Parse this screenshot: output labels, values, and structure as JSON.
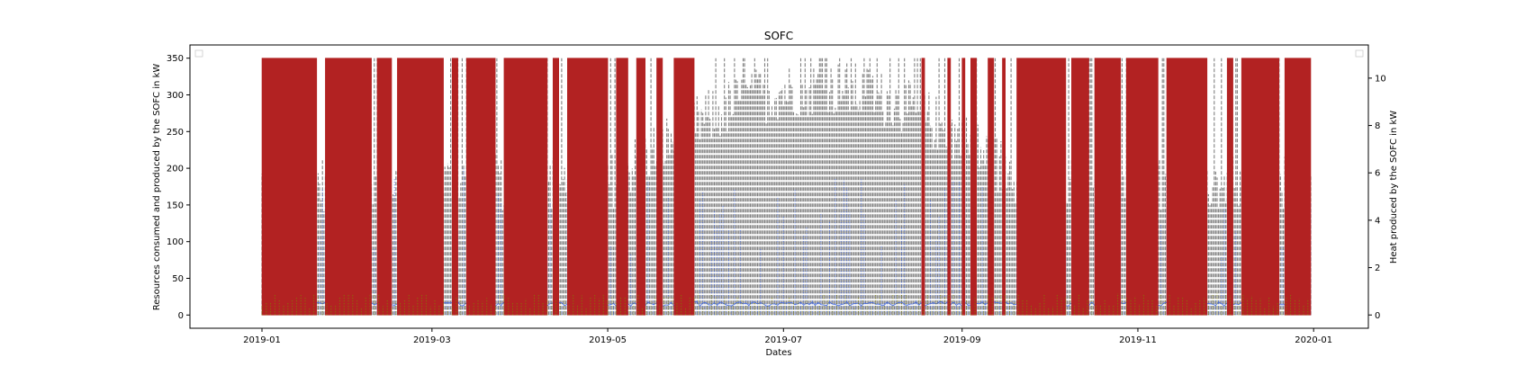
{
  "chart_data": {
    "type": "line",
    "title": "SOFC",
    "xlabel": "Dates",
    "ylabel": "Resources consumed and produced by the SOFC in kW",
    "y2label": "Heat produced by the SOFC in kW",
    "x_range": [
      "2018-12-07",
      "2020-01-20"
    ],
    "ylim": [
      -18,
      368
    ],
    "y2lim": [
      -0.56,
      11.4
    ],
    "x_ticks": [
      "2019-01",
      "2019-03",
      "2019-05",
      "2019-07",
      "2019-09",
      "2019-11",
      "2020-01"
    ],
    "y_ticks": [
      0,
      50,
      100,
      150,
      200,
      250,
      300,
      350
    ],
    "y2_ticks": [
      0,
      2,
      4,
      6,
      8,
      10
    ],
    "grid": false,
    "legend_placement": [
      "upper-left",
      "upper-right"
    ],
    "series": [
      {
        "color": "#b22222",
        "style": "dotted",
        "axis": "left",
        "min": 0,
        "max": 350,
        "active_periods": [
          [
            "2019-01-01",
            "2019-01-20"
          ],
          [
            "2019-01-23",
            "2019-02-08"
          ],
          [
            "2019-02-10",
            "2019-02-15"
          ],
          [
            "2019-02-17",
            "2019-03-05"
          ],
          [
            "2019-03-08",
            "2019-03-10"
          ],
          [
            "2019-03-13",
            "2019-03-23"
          ],
          [
            "2019-03-26",
            "2019-04-10"
          ],
          [
            "2019-04-12",
            "2019-04-14"
          ],
          [
            "2019-04-17",
            "2019-05-01"
          ],
          [
            "2019-05-04",
            "2019-05-08"
          ],
          [
            "2019-05-11",
            "2019-05-14"
          ],
          [
            "2019-05-18",
            "2019-05-20"
          ],
          [
            "2019-05-24",
            "2019-05-31"
          ],
          [
            "2019-08-18",
            "2019-08-19"
          ],
          [
            "2019-08-27",
            "2019-08-28"
          ],
          [
            "2019-09-01",
            "2019-09-02"
          ],
          [
            "2019-09-04",
            "2019-09-06"
          ],
          [
            "2019-09-10",
            "2019-09-12"
          ],
          [
            "2019-09-15",
            "2019-09-16"
          ],
          [
            "2019-09-20",
            "2019-10-07"
          ],
          [
            "2019-10-09",
            "2019-10-15"
          ],
          [
            "2019-10-17",
            "2019-10-26"
          ],
          [
            "2019-10-28",
            "2019-11-08"
          ],
          [
            "2019-11-11",
            "2019-11-25"
          ],
          [
            "2019-12-02",
            "2019-12-04"
          ],
          [
            "2019-12-07",
            "2019-12-20"
          ],
          [
            "2019-12-22",
            "2019-12-31"
          ]
        ]
      },
      {
        "color": "#808080",
        "style": "dashed",
        "axis": "left",
        "min": 0,
        "max": 350,
        "typical_summer_peak": 270
      },
      {
        "color": "#4169e1",
        "style": "dotted",
        "axis": "left",
        "min": 0,
        "max": 200,
        "typical_level": 12
      },
      {
        "color": "#808000",
        "style": "dotted",
        "axis": "left",
        "min": 0,
        "max": 30
      }
    ]
  }
}
